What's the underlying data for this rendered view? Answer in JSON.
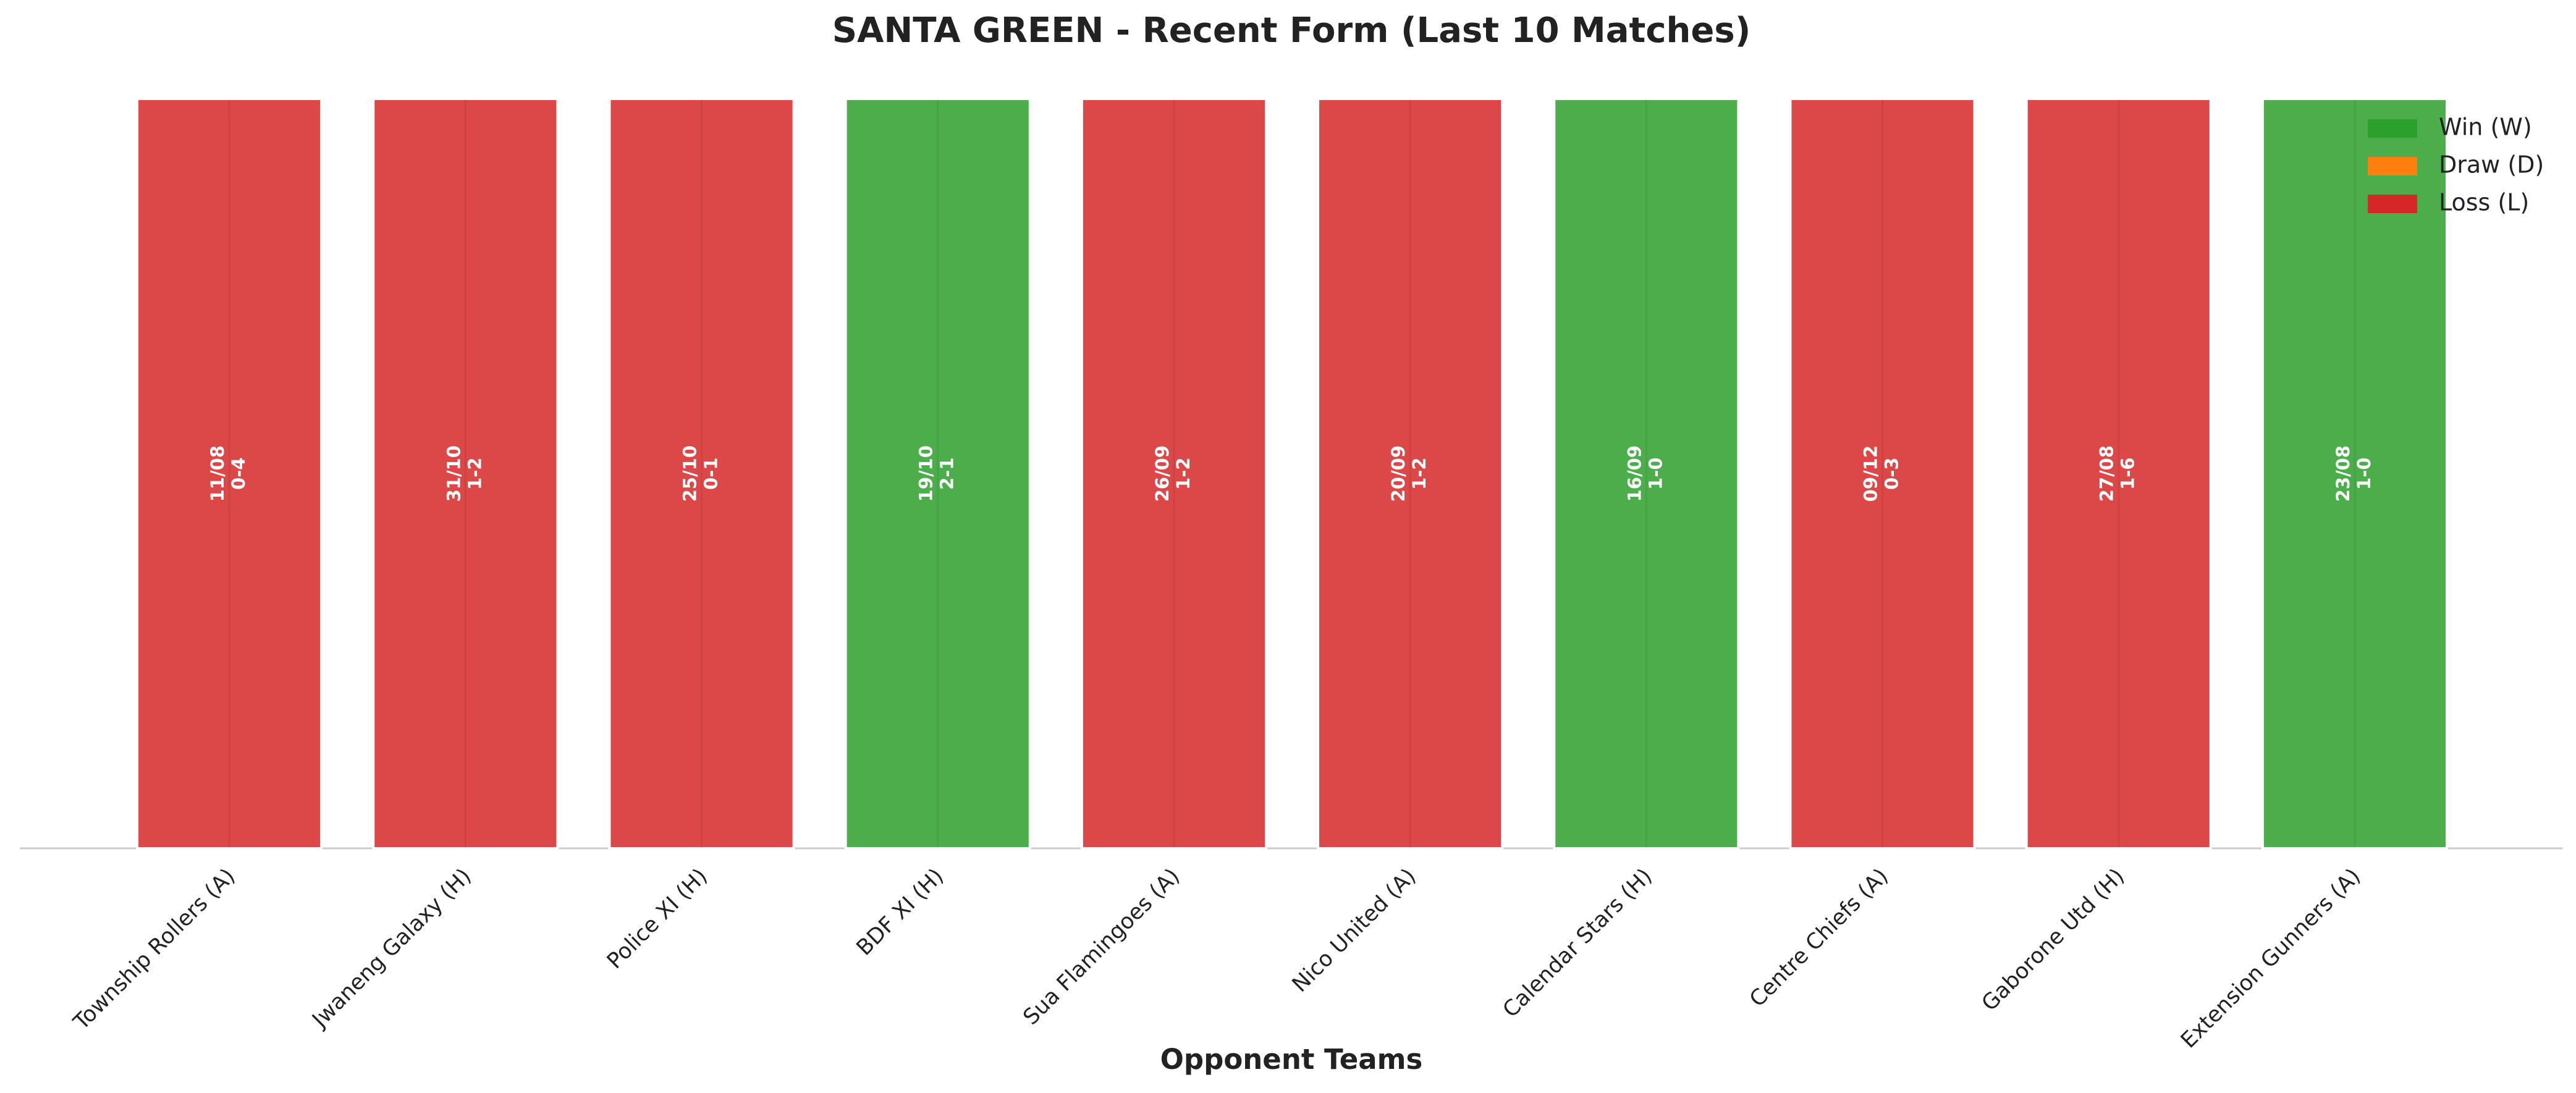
{
  "chart_data": {
    "type": "bar",
    "title": "SANTA GREEN - Recent Form (Last 10 Matches)",
    "x_label": "Opponent Teams",
    "categories": [
      "Township Rollers (A)",
      "Jwaneng Galaxy (H)",
      "Police XI (H)",
      "BDF XI (H)",
      "Sua Flamingoes (A)",
      "Nico United (A)",
      "Calendar Stars (H)",
      "Centre Chiefs (A)",
      "Gaborone Utd (H)",
      "Extension Gunners (A)"
    ],
    "dates": [
      "11/08",
      "31/10",
      "25/10",
      "19/10",
      "26/09",
      "20/09",
      "16/09",
      "09/12",
      "27/08",
      "23/08"
    ],
    "scores": [
      "0-4",
      "1-2",
      "0-1",
      "2-1",
      "1-2",
      "1-2",
      "1-0",
      "0-3",
      "1-6",
      "1-0"
    ],
    "series": [
      {
        "name": "Win (W)",
        "color": "#2ca02c",
        "values": [
          null,
          null,
          null,
          1,
          null,
          null,
          1,
          null,
          null,
          1
        ]
      },
      {
        "name": "Draw (D)",
        "color": "#ff7f0e",
        "values": [
          null,
          null,
          null,
          null,
          null,
          null,
          null,
          null,
          null,
          null
        ]
      },
      {
        "name": "Loss (L)",
        "color": "#d62728",
        "values": [
          1,
          1,
          1,
          null,
          1,
          1,
          null,
          1,
          1,
          null
        ]
      }
    ],
    "ylim": [
      0,
      1
    ],
    "legend": "upper right"
  }
}
